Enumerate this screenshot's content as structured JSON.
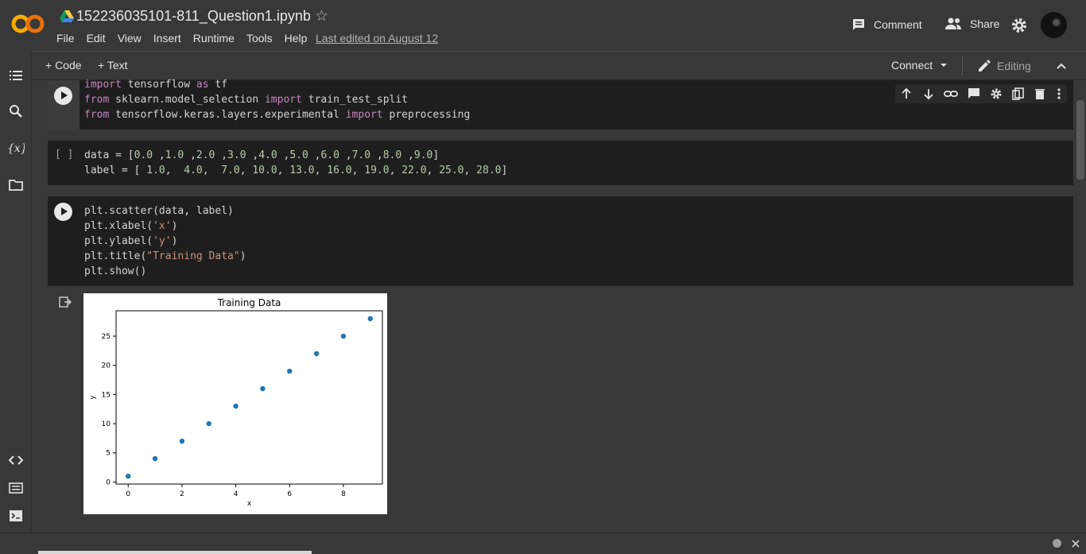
{
  "header": {
    "filename": "152236035101-811_Question1.ipynb",
    "menu": [
      "File",
      "Edit",
      "View",
      "Insert",
      "Runtime",
      "Tools",
      "Help"
    ],
    "last_edited": "Last edited on August 12",
    "comment_label": "Comment",
    "share_label": "Share"
  },
  "toolbar": {
    "add_code": "+ Code",
    "add_text": "+ Text",
    "connect": "Connect",
    "editing": "Editing"
  },
  "cells": [
    {
      "lines": [
        [
          [
            "kw",
            "import"
          ],
          [
            "p",
            " tensorflow "
          ],
          [
            "kw",
            "as"
          ],
          [
            "p",
            " tf"
          ]
        ],
        [
          [
            "kw",
            "from"
          ],
          [
            "p",
            " sklearn.model_selection "
          ],
          [
            "kw",
            "import"
          ],
          [
            "p",
            " train_test_split"
          ]
        ],
        [
          [
            "kw",
            "from"
          ],
          [
            "p",
            " tensorflow.keras.layers.experimental "
          ],
          [
            "kw",
            "import"
          ],
          [
            "p",
            " preprocessing"
          ]
        ]
      ]
    },
    {
      "exec": "[ ]",
      "lines": [
        [
          [
            "p",
            "data = ["
          ],
          [
            "num",
            "0.0"
          ],
          [
            "p",
            " ,"
          ],
          [
            "num",
            "1.0"
          ],
          [
            "p",
            " ,"
          ],
          [
            "num",
            "2.0"
          ],
          [
            "p",
            " ,"
          ],
          [
            "num",
            "3.0"
          ],
          [
            "p",
            " ,"
          ],
          [
            "num",
            "4.0"
          ],
          [
            "p",
            " ,"
          ],
          [
            "num",
            "5.0"
          ],
          [
            "p",
            " ,"
          ],
          [
            "num",
            "6.0"
          ],
          [
            "p",
            " ,"
          ],
          [
            "num",
            "7.0"
          ],
          [
            "p",
            " ,"
          ],
          [
            "num",
            "8.0"
          ],
          [
            "p",
            " ,"
          ],
          [
            "num",
            "9.0"
          ],
          [
            "p",
            "]"
          ]
        ],
        [
          [
            "p",
            "label = [ "
          ],
          [
            "num",
            "1.0"
          ],
          [
            "p",
            ",  "
          ],
          [
            "num",
            "4.0"
          ],
          [
            "p",
            ",  "
          ],
          [
            "num",
            "7.0"
          ],
          [
            "p",
            ", "
          ],
          [
            "num",
            "10.0"
          ],
          [
            "p",
            ", "
          ],
          [
            "num",
            "13.0"
          ],
          [
            "p",
            ", "
          ],
          [
            "num",
            "16.0"
          ],
          [
            "p",
            ", "
          ],
          [
            "num",
            "19.0"
          ],
          [
            "p",
            ", "
          ],
          [
            "num",
            "22.0"
          ],
          [
            "p",
            ", "
          ],
          [
            "num",
            "25.0"
          ],
          [
            "p",
            ", "
          ],
          [
            "num",
            "28.0"
          ],
          [
            "p",
            "]"
          ]
        ]
      ]
    },
    {
      "lines": [
        [
          [
            "p",
            "plt.scatter(data, label)"
          ]
        ],
        [
          [
            "p",
            "plt.xlabel("
          ],
          [
            "str",
            "'x'"
          ],
          [
            "p",
            ")"
          ]
        ],
        [
          [
            "p",
            "plt.ylabel("
          ],
          [
            "str",
            "'y'"
          ],
          [
            "p",
            ")"
          ]
        ],
        [
          [
            "p",
            "plt.title("
          ],
          [
            "str",
            "\"Training Data\""
          ],
          [
            "p",
            ")"
          ]
        ],
        [
          [
            "p",
            "plt.show()"
          ]
        ]
      ]
    }
  ],
  "chart_data": {
    "type": "scatter",
    "title": "Training Data",
    "xlabel": "x",
    "ylabel": "y",
    "x": [
      0,
      1,
      2,
      3,
      4,
      5,
      6,
      7,
      8,
      9
    ],
    "y": [
      1,
      4,
      7,
      10,
      13,
      16,
      19,
      22,
      25,
      28
    ],
    "xticks": [
      0,
      2,
      4,
      6,
      8
    ],
    "yticks": [
      0,
      5,
      10,
      15,
      20,
      25
    ],
    "xlim": [
      -0.45,
      9.45
    ],
    "ylim": [
      -0.35,
      29.35
    ],
    "color": "#1f77b4",
    "grid": false
  },
  "colors": {
    "background": "#383838",
    "cell": "#1e1e1e",
    "keyword": "#c586c0",
    "number": "#b5cea8",
    "string": "#ce9178"
  }
}
